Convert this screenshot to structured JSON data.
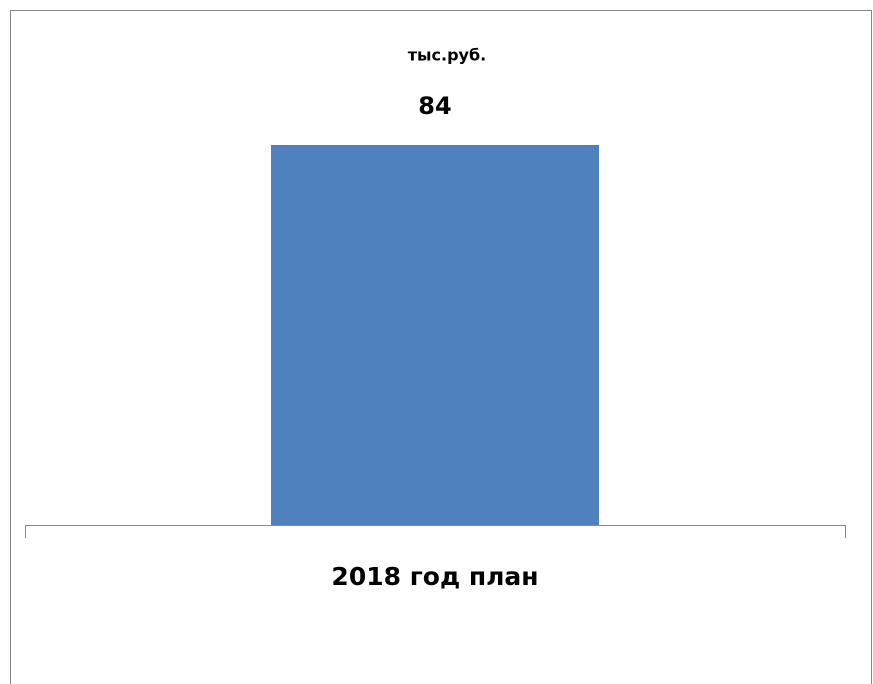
{
  "chart_data": {
    "type": "bar",
    "title": "тыс.руб.",
    "categories": [
      "2018 год план"
    ],
    "values": [
      84
    ],
    "color": "#4f81bd"
  }
}
